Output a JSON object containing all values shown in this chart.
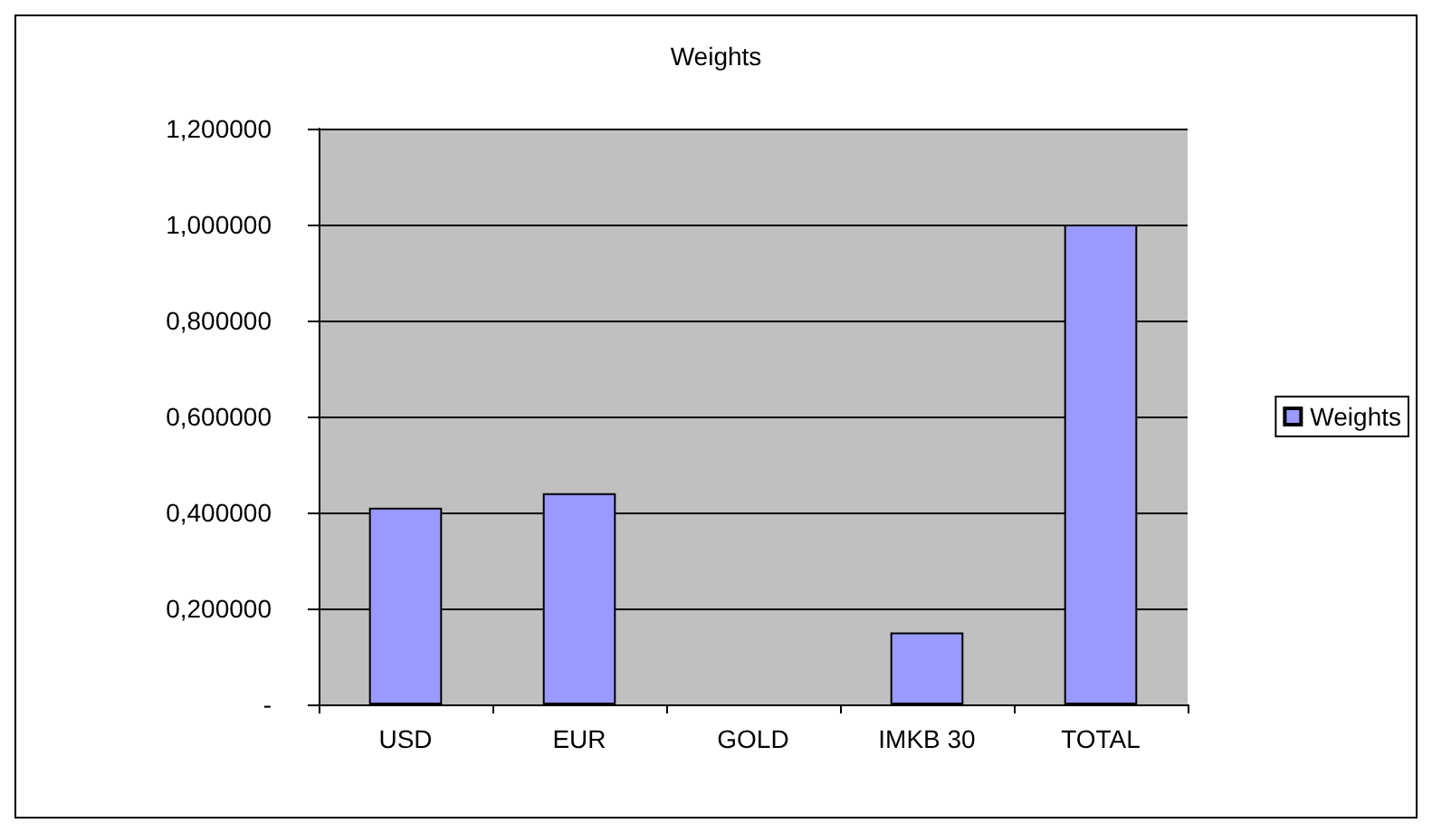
{
  "chart_data": {
    "type": "bar",
    "title": "Weights",
    "categories": [
      "USD",
      "EUR",
      "GOLD",
      "IMKB 30",
      "TOTAL"
    ],
    "series": [
      {
        "name": "Weights",
        "color": "#9999ff",
        "values": [
          0.41,
          0.44,
          0,
          0.15,
          1.0
        ]
      }
    ],
    "ylim": [
      0,
      1.2
    ],
    "yticks": [
      {
        "value": 0,
        "label": "-"
      },
      {
        "value": 0.2,
        "label": "0,200000"
      },
      {
        "value": 0.4,
        "label": "0,400000"
      },
      {
        "value": 0.6,
        "label": "0,600000"
      },
      {
        "value": 0.8,
        "label": "0,800000"
      },
      {
        "value": 1.0,
        "label": "1,000000"
      },
      {
        "value": 1.2,
        "label": "1,200000"
      }
    ],
    "grid": "y",
    "legend": "right"
  }
}
